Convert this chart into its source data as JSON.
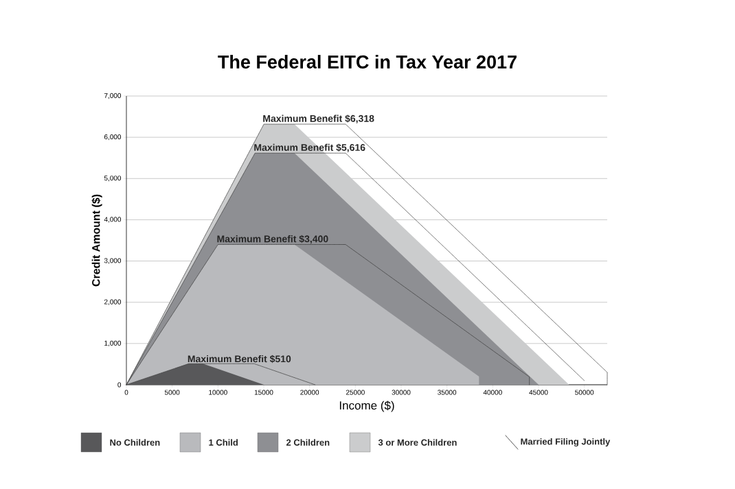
{
  "chart_data": {
    "type": "area",
    "title": "The Federal EITC in Tax Year 2017",
    "xlabel": "Income ($)",
    "ylabel": "Credit Amount ($)",
    "xlim": [
      0,
      52500
    ],
    "ylim": [
      0,
      7000
    ],
    "xticks": [
      0,
      5000,
      10000,
      15000,
      20000,
      25000,
      30000,
      35000,
      40000,
      45000,
      50000
    ],
    "yticks": [
      {
        "value": 0,
        "label": "0"
      },
      {
        "value": 1000,
        "label": "1,000"
      },
      {
        "value": 2000,
        "label": "2,000"
      },
      {
        "value": 3000,
        "label": "3,000"
      },
      {
        "value": 4000,
        "label": "4,000"
      },
      {
        "value": 5000,
        "label": "5,000"
      },
      {
        "value": 6000,
        "label": "6,000"
      },
      {
        "value": 7000,
        "label": "7,000"
      }
    ],
    "grid": "y",
    "legend": "bottom",
    "series": [
      {
        "name": "No Children",
        "color": "#58585a",
        "x": [
          0,
          6800,
          8350,
          15010
        ],
        "values": [
          0,
          510,
          510,
          0
        ]
      },
      {
        "name": "1 Child",
        "color": "#b9babd",
        "x": [
          0,
          10000,
          18350,
          38500,
          38500
        ],
        "values": [
          0,
          3400,
          3400,
          200,
          0
        ]
      },
      {
        "name": "2 Children",
        "color": "#8e8f93",
        "x": [
          0,
          14040,
          18350,
          45007
        ],
        "values": [
          0,
          5616,
          5616,
          0
        ]
      },
      {
        "name": "3 or More Children",
        "color": "#cbcccd",
        "x": [
          0,
          15010,
          18350,
          48340
        ],
        "values": [
          0,
          6318,
          6318,
          0
        ]
      },
      {
        "name": "Married Filing Jointly",
        "type": "line",
        "line_style": "dashed",
        "color": "#3a3a3a",
        "x": [
          0,
          6800,
          13950,
          20600
        ],
        "values": [
          0,
          510,
          510,
          0
        ]
      },
      {
        "type": "line",
        "line_style": "dashed",
        "color": "#3a3a3a",
        "x": [
          0,
          10000,
          23930,
          44000,
          44000
        ],
        "values": [
          0,
          3400,
          3400,
          190,
          0
        ]
      },
      {
        "type": "line",
        "line_style": "dashed",
        "color": "#3a3a3a",
        "x": [
          0,
          14040,
          23930,
          50000
        ],
        "values": [
          0,
          5616,
          5616,
          100
        ]
      },
      {
        "type": "line",
        "line_style": "dashed",
        "color": "#3a3a3a",
        "x": [
          0,
          15010,
          23930,
          52500,
          52500
        ],
        "values": [
          0,
          6318,
          6318,
          300,
          0
        ]
      }
    ],
    "annotations": [
      {
        "text": "Maximum Benefit $6,318",
        "x": 15010,
        "y": 6318
      },
      {
        "text": "Maximum Benefit $5,616",
        "x": 14040,
        "y": 5616
      },
      {
        "text": "Maximum Benefit $3,400",
        "x": 10000,
        "y": 3400
      },
      {
        "text": "Maximum Benefit $510",
        "x": 6800,
        "y": 510
      }
    ]
  }
}
